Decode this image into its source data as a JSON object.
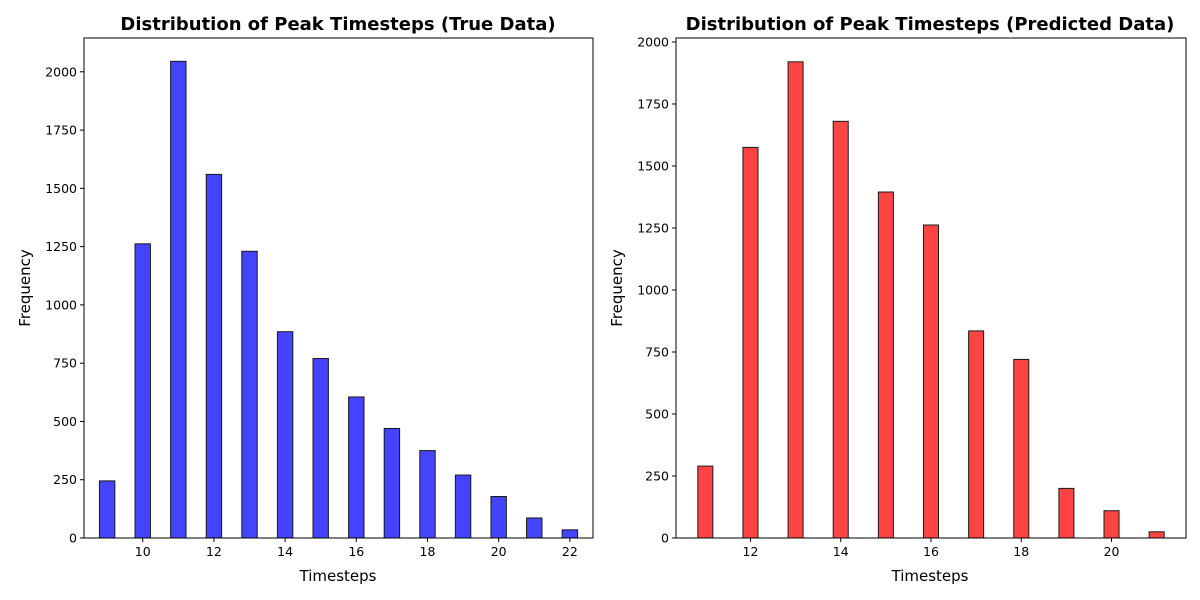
{
  "chart_data": [
    {
      "type": "bar",
      "title": "Distribution of Peak Timesteps (True Data)",
      "xlabel": "Timesteps",
      "ylabel": "Frequency",
      "color": "#4444ff",
      "edge_color": "#1a1a1a",
      "xlim": [
        8.35,
        22.65
      ],
      "ylim": [
        0,
        2145
      ],
      "xticks": [
        10,
        12,
        14,
        16,
        18,
        20,
        22
      ],
      "yticks": [
        0,
        250,
        500,
        750,
        1000,
        1250,
        1500,
        1750,
        2000
      ],
      "bar_width": 0.433,
      "grid": false,
      "x": [
        9,
        10,
        11,
        12,
        13,
        14,
        15,
        16,
        17,
        18,
        19,
        20,
        21,
        22
      ],
      "values": [
        245,
        1262,
        2045,
        1560,
        1230,
        885,
        770,
        605,
        470,
        375,
        270,
        178,
        86,
        35
      ]
    },
    {
      "type": "bar",
      "title": "Distribution of Peak Timesteps (Predicted Data)",
      "xlabel": "Timesteps",
      "ylabel": "Frequency",
      "color": "#ff4444",
      "edge_color": "#1a1a1a",
      "xlim": [
        10.35,
        21.65
      ],
      "ylim": [
        0,
        2016
      ],
      "xticks": [
        12,
        14,
        16,
        18,
        20
      ],
      "yticks": [
        0,
        250,
        500,
        750,
        1000,
        1250,
        1500,
        1750,
        2000
      ],
      "bar_width": 0.333,
      "grid": false,
      "x": [
        11,
        12,
        13,
        14,
        15,
        16,
        17,
        18,
        19,
        20,
        21
      ],
      "values": [
        290,
        1575,
        1920,
        1680,
        1395,
        1262,
        835,
        720,
        200,
        110,
        25
      ]
    }
  ]
}
